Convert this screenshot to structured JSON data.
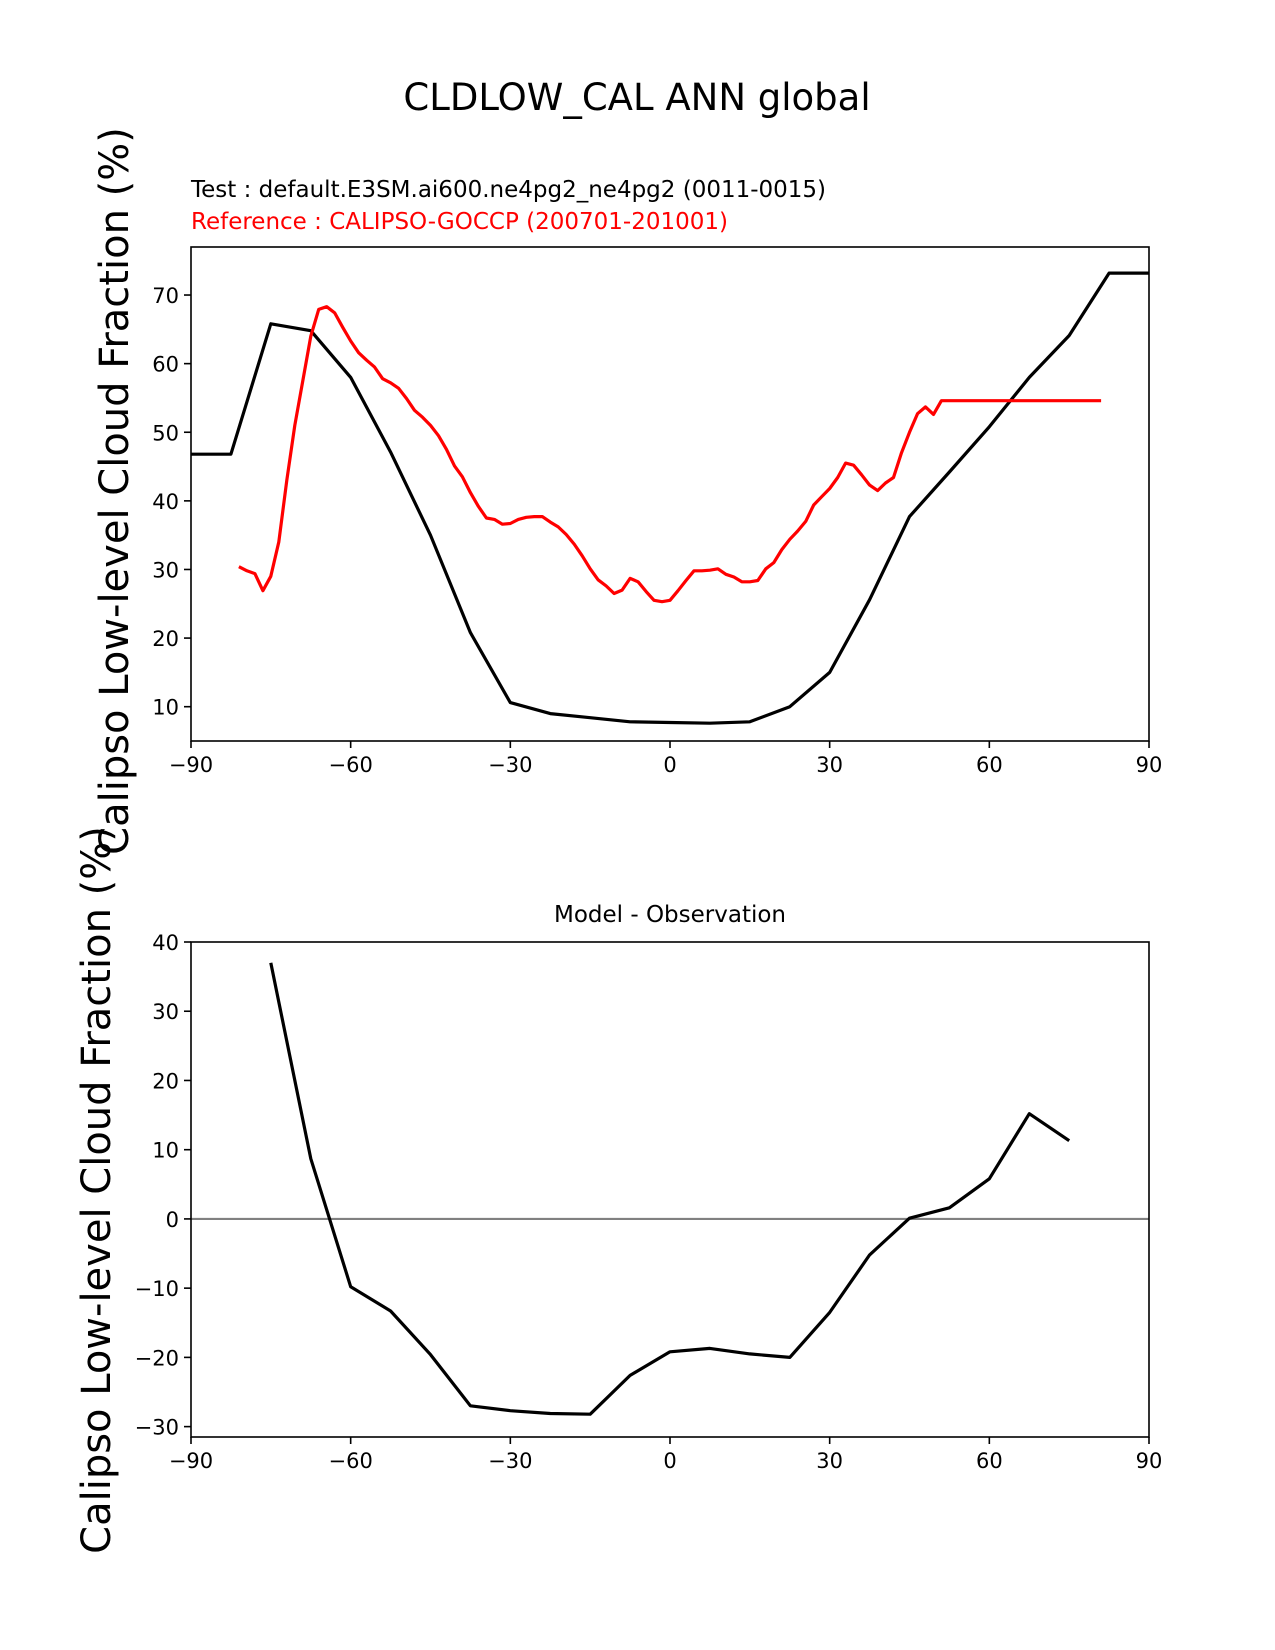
{
  "figure": {
    "title": "CLDLOW_CAL ANN global"
  },
  "chart_data": [
    {
      "type": "line",
      "title": "",
      "test_label": "Test : default.E3SM.ai600.ne4pg2_ne4pg2 (0011-0015)",
      "reference_label": "Reference : CALIPSO-GOCCP (200701-201001)",
      "xlabel": "",
      "ylabel": "Calipso Low-level Cloud Fraction (%)",
      "xlim": [
        -90,
        90
      ],
      "ylim": [
        5,
        77
      ],
      "xticks": [
        "−90",
        "−60",
        "−30",
        "0",
        "30",
        "60",
        "90"
      ],
      "yticks": [
        "10",
        "20",
        "30",
        "40",
        "50",
        "60",
        "70"
      ],
      "grid": false,
      "series": [
        {
          "color": "#000000",
          "x": [
            -90,
            -82.5,
            -75,
            -67.5,
            -60,
            -52.5,
            -45,
            -37.5,
            -30,
            -22.5,
            -15,
            -7.5,
            0,
            7.5,
            15,
            22.5,
            30,
            37.5,
            45,
            52.5,
            60,
            67.5,
            75,
            82.5,
            90
          ],
          "y": [
            46.8,
            46.8,
            65.8,
            64.8,
            58.0,
            47.1,
            35.0,
            20.8,
            10.6,
            9.0,
            8.4,
            7.8,
            7.7,
            7.6,
            7.8,
            10.0,
            15.0,
            25.6,
            37.7,
            44.2,
            50.8,
            58.0,
            64.1,
            73.2,
            73.2
          ]
        },
        {
          "color": "#ff0000",
          "x": [
            -81,
            -79.5,
            -78,
            -76.5,
            -75,
            -73.5,
            -72,
            -70.5,
            -69,
            -67.5,
            -66,
            -64.5,
            -63,
            -61.5,
            -60,
            -58.5,
            -57,
            -55.5,
            -54,
            -52.5,
            -51,
            -49.5,
            -48,
            -46.5,
            -45,
            -43.5,
            -42,
            -40.5,
            -39,
            -37.5,
            -36,
            -34.5,
            -33,
            -31.5,
            -30,
            -28.5,
            -27,
            -25.5,
            -24,
            -22.5,
            -21,
            -19.5,
            -18,
            -16.5,
            -15,
            -13.5,
            -12,
            -10.5,
            -9,
            -7.5,
            -6,
            -4.5,
            -3,
            -1.5,
            0,
            1.5,
            3,
            4.5,
            6,
            7.5,
            9,
            10.5,
            12,
            13.5,
            15,
            16.5,
            18,
            19.5,
            21,
            22.5,
            24,
            25.5,
            27,
            28.5,
            30,
            31.5,
            33,
            34.5,
            36,
            37.5,
            39,
            40.5,
            42,
            43.5,
            45,
            46.5,
            48,
            49.5,
            51,
            52.5,
            54,
            55.5,
            57,
            58.5,
            60,
            61.5,
            63,
            64.5,
            66,
            67.5,
            69,
            70.5,
            72,
            73.5,
            75,
            76.5,
            78,
            79.5,
            81
          ],
          "y": [
            30.4,
            29.8,
            29.4,
            26.9,
            29.0,
            34.0,
            43.0,
            51.0,
            57.5,
            64.0,
            67.9,
            68.3,
            67.4,
            65.3,
            63.3,
            61.6,
            60.5,
            59.5,
            57.8,
            57.2,
            56.4,
            54.9,
            53.2,
            52.2,
            51.0,
            49.5,
            47.5,
            45.1,
            43.5,
            41.2,
            39.2,
            37.5,
            37.3,
            36.6,
            36.7,
            37.3,
            37.6,
            37.7,
            37.7,
            36.9,
            36.2,
            35.1,
            33.7,
            32.0,
            30.1,
            28.5,
            27.6,
            26.5,
            27.0,
            28.7,
            28.2,
            26.8,
            25.5,
            25.3,
            25.5,
            26.9,
            28.4,
            29.8,
            29.8,
            29.9,
            30.1,
            29.3,
            28.9,
            28.2,
            28.2,
            28.4,
            30.1,
            31.0,
            32.9,
            34.4,
            35.6,
            37.0,
            39.4,
            40.6,
            41.8,
            43.4,
            45.5,
            45.2,
            43.8,
            42.3,
            41.5,
            42.6,
            43.4,
            47.0,
            50.0,
            52.7,
            53.7,
            52.6,
            54.6,
            54.6,
            54.6,
            54.6,
            54.6,
            54.6,
            54.6,
            54.6,
            54.6,
            54.6,
            54.6,
            54.6,
            54.6,
            54.6,
            54.6,
            54.6,
            54.6,
            54.6,
            54.6,
            54.6,
            54.6
          ]
        }
      ]
    },
    {
      "type": "line",
      "title": "Model - Observation",
      "xlabel": "",
      "ylabel": "Calipso Low-level Cloud Fraction (%)",
      "xlim": [
        -90,
        90
      ],
      "ylim": [
        -31.5,
        40
      ],
      "xticks": [
        "−90",
        "−60",
        "−30",
        "0",
        "30",
        "60",
        "90"
      ],
      "yticks": [
        "−30",
        "−20",
        "−10",
        "0",
        "10",
        "20",
        "30",
        "40"
      ],
      "grid": false,
      "zero_line": {
        "y": 0,
        "color": "#808080"
      },
      "series": [
        {
          "color": "#000000",
          "x": [
            -75,
            -67.5,
            -60,
            -52.5,
            -45,
            -37.5,
            -30,
            -22.5,
            -15,
            -7.5,
            0,
            7.5,
            15,
            22.5,
            30,
            37.5,
            45,
            52.5,
            60,
            67.5,
            75
          ],
          "y": [
            37.0,
            8.7,
            -9.8,
            -13.3,
            -19.6,
            -27.0,
            -27.7,
            -28.1,
            -28.2,
            -22.6,
            -19.2,
            -18.7,
            -19.5,
            -20.0,
            -13.5,
            -5.2,
            0.1,
            1.6,
            5.8,
            15.2,
            11.3
          ]
        }
      ]
    }
  ]
}
